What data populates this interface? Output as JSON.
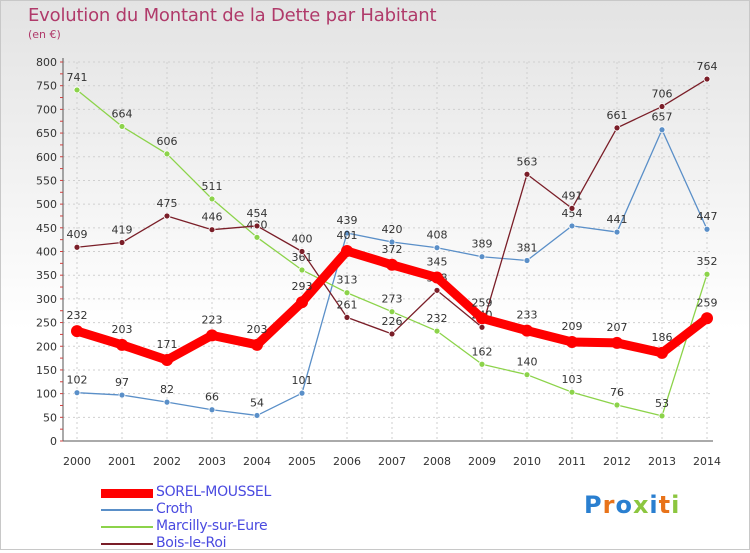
{
  "title": "Evolution du Montant de la Dette par Habitant",
  "subtitle": "(en €)",
  "logo": "Proxiti",
  "chart_data": {
    "type": "line",
    "title": "Evolution du Montant de la Dette par Habitant",
    "ylabel": "(en €)",
    "x": [
      "2000",
      "2001",
      "2002",
      "2003",
      "2004",
      "2005",
      "2006",
      "2007",
      "2008",
      "2009",
      "2010",
      "2011",
      "2012",
      "2013",
      "2014"
    ],
    "ylim": [
      0,
      800
    ],
    "yticks": [
      0,
      50,
      100,
      150,
      200,
      250,
      300,
      350,
      400,
      450,
      500,
      550,
      600,
      650,
      700,
      750,
      800
    ],
    "grid": true,
    "legend_position": "bottom-left",
    "series": [
      {
        "name": "SOREL-MOUSSEL",
        "color": "#ff0000",
        "values": [
          232,
          203,
          171,
          223,
          203,
          293,
          401,
          372,
          345,
          259,
          233,
          209,
          207,
          186,
          259
        ]
      },
      {
        "name": "Croth",
        "color": "#5a8fc8",
        "values": [
          102,
          97,
          82,
          66,
          54,
          101,
          439,
          420,
          408,
          389,
          381,
          454,
          441,
          657,
          447
        ]
      },
      {
        "name": "Marcilly-sur-Eure",
        "color": "#8cd34a",
        "values": [
          741,
          664,
          606,
          511,
          430,
          361,
          313,
          273,
          232,
          162,
          140,
          103,
          76,
          53,
          352
        ]
      },
      {
        "name": "Bois-le-Roi",
        "color": "#7a1e28",
        "values": [
          409,
          419,
          475,
          446,
          454,
          400,
          261,
          226,
          318,
          240,
          563,
          491,
          661,
          706,
          764
        ]
      }
    ]
  }
}
